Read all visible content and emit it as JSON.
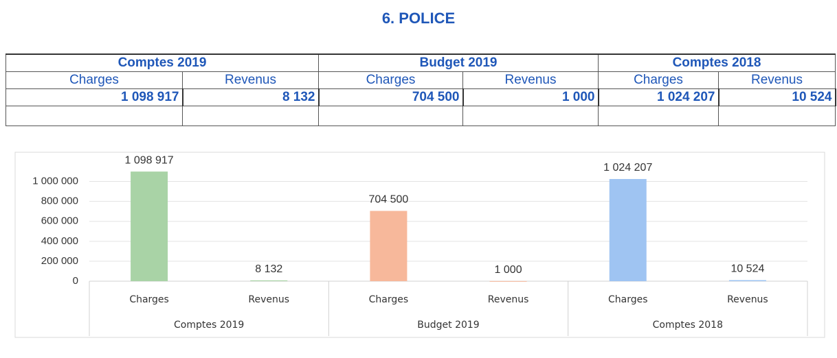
{
  "title": "6. POLICE",
  "table": {
    "groups": [
      "Comptes 2019",
      "Budget 2019",
      "Comptes 2018"
    ],
    "columns": [
      "Charges",
      "Revenus",
      "Charges",
      "Revenus",
      "Charges",
      "Revenus"
    ],
    "rows": [
      [
        "1 098 917",
        "8 132",
        "704 500",
        "1 000",
        "1 024 207",
        "10 524"
      ]
    ]
  },
  "chart_data": {
    "type": "bar",
    "groups": [
      "Comptes 2019",
      "Budget 2019",
      "Comptes 2018"
    ],
    "categories": [
      "Charges",
      "Revenus",
      "Charges",
      "Revenus",
      "Charges",
      "Revenus"
    ],
    "values": [
      1098917,
      8132,
      704500,
      1000,
      1024207,
      10524
    ],
    "value_labels": [
      "1 098 917",
      "8 132",
      "704 500",
      "1 000",
      "1 024 207",
      "10 524"
    ],
    "colors": [
      "#a9d3a6",
      "#a9d3a6",
      "#f7b89b",
      "#f7b89b",
      "#9fc4f2",
      "#9fc4f2"
    ],
    "ylim": [
      0,
      1100000
    ],
    "yticks": [
      0,
      {
        "value": 200000,
        "label": "200 000"
      },
      {
        "value": 400000,
        "label": "400 000"
      },
      {
        "value": 600000,
        "label": "600 000"
      },
      {
        "value": 800000,
        "label": "800 000"
      },
      {
        "value": 1000000,
        "label": "1 000 000"
      }
    ],
    "grid": true
  }
}
